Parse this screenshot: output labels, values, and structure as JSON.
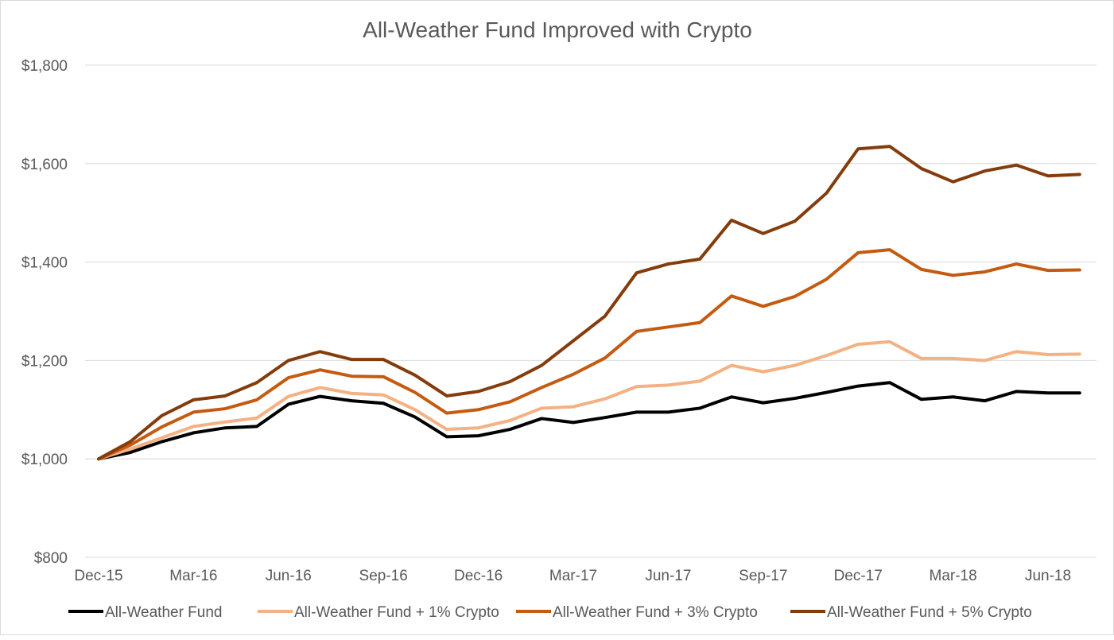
{
  "chart_data": {
    "type": "line",
    "title": "All-Weather Fund Improved with Crypto",
    "xlabel": "",
    "ylabel": "",
    "ylim": [
      800,
      1800
    ],
    "yticks": [
      800,
      1000,
      1200,
      1400,
      1600,
      1800
    ],
    "ytick_labels": [
      "$800",
      "$1,000",
      "$1,200",
      "$1,400",
      "$1,600",
      "$1,800"
    ],
    "grid": true,
    "legend_position": "bottom",
    "x": [
      "Dec-15",
      "Jan-16",
      "Feb-16",
      "Mar-16",
      "Apr-16",
      "May-16",
      "Jun-16",
      "Jul-16",
      "Aug-16",
      "Sep-16",
      "Oct-16",
      "Nov-16",
      "Dec-16",
      "Jan-17",
      "Feb-17",
      "Mar-17",
      "Apr-17",
      "May-17",
      "Jun-17",
      "Jul-17",
      "Aug-17",
      "Sep-17",
      "Oct-17",
      "Nov-17",
      "Dec-17",
      "Jan-18",
      "Feb-18",
      "Mar-18",
      "Apr-18",
      "May-18",
      "Jun-18",
      "Jul-18"
    ],
    "xtick_labels": [
      "Dec-15",
      "Mar-16",
      "Jun-16",
      "Sep-16",
      "Dec-16",
      "Mar-17",
      "Jun-17",
      "Sep-17",
      "Dec-17",
      "Mar-18",
      "Jun-18"
    ],
    "series": [
      {
        "name": "All-Weather Fund",
        "color": "#000000",
        "values": [
          1000,
          1013,
          1035,
          1053,
          1063,
          1066,
          1111,
          1127,
          1118,
          1113,
          1085,
          1045,
          1047,
          1060,
          1082,
          1074,
          1084,
          1095,
          1095,
          1103,
          1126,
          1114,
          1123,
          1135,
          1148,
          1155,
          1121,
          1126,
          1118,
          1137,
          1134,
          1134
        ]
      },
      {
        "name": "All-Weather Fund + 1% Crypto",
        "color": "#F4B183",
        "values": [
          1000,
          1020,
          1043,
          1066,
          1075,
          1083,
          1127,
          1145,
          1133,
          1130,
          1100,
          1060,
          1063,
          1078,
          1103,
          1106,
          1122,
          1147,
          1150,
          1158,
          1190,
          1177,
          1190,
          1210,
          1233,
          1238,
          1204,
          1204,
          1200,
          1218,
          1212,
          1213
        ]
      },
      {
        "name": "All-Weather Fund + 3% Crypto",
        "color": "#C55A11",
        "values": [
          1000,
          1028,
          1065,
          1095,
          1102,
          1120,
          1165,
          1181,
          1168,
          1167,
          1135,
          1093,
          1100,
          1116,
          1145,
          1172,
          1205,
          1259,
          1268,
          1277,
          1331,
          1310,
          1330,
          1365,
          1419,
          1425,
          1385,
          1373,
          1380,
          1396,
          1383,
          1384
        ]
      },
      {
        "name": "All-Weather Fund + 5% Crypto",
        "color": "#843C0C",
        "values": [
          1000,
          1035,
          1088,
          1120,
          1128,
          1155,
          1200,
          1218,
          1202,
          1202,
          1170,
          1128,
          1137,
          1157,
          1190,
          1240,
          1290,
          1378,
          1396,
          1406,
          1485,
          1458,
          1483,
          1540,
          1630,
          1635,
          1590,
          1563,
          1585,
          1597,
          1575,
          1578
        ]
      }
    ]
  }
}
